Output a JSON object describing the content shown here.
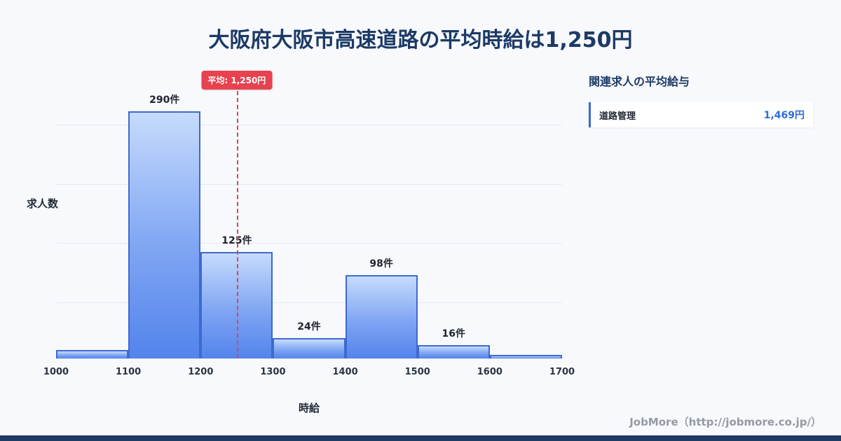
{
  "title": "大阪府大阪市高速道路の平均時給は1,250円",
  "chart_data": {
    "type": "bar",
    "title": "大阪府大阪市高速道路の平均時給は1,250円",
    "xlabel": "時給",
    "ylabel": "求人数",
    "x_ticks": [
      "1000",
      "1100",
      "1200",
      "1300",
      "1400",
      "1500",
      "1600",
      "1700"
    ],
    "ylim": [
      0,
      340
    ],
    "grid": "horizontal",
    "bins": [
      {
        "range": [
          1000,
          1100
        ],
        "value": 10,
        "label": ""
      },
      {
        "range": [
          1100,
          1200
        ],
        "value": 290,
        "label": "290件"
      },
      {
        "range": [
          1200,
          1300
        ],
        "value": 125,
        "label": "125件"
      },
      {
        "range": [
          1300,
          1400
        ],
        "value": 24,
        "label": "24件"
      },
      {
        "range": [
          1400,
          1500
        ],
        "value": 98,
        "label": "98件"
      },
      {
        "range": [
          1500,
          1600
        ],
        "value": 16,
        "label": "16件"
      },
      {
        "range": [
          1600,
          1700
        ],
        "value": 4,
        "label": ""
      }
    ],
    "average_line": {
      "x": 1250,
      "label": "平均: 1,250円",
      "color": "#e8414f"
    }
  },
  "side_panel": {
    "heading": "関連求人の平均給与",
    "items": [
      {
        "label": "道路管理",
        "value": "1,469円"
      }
    ]
  },
  "footer": {
    "credit": "JobMore（http://jobmore.co.jp/）"
  },
  "colors": {
    "background": "#f7f9fc",
    "title_navy": "#1c3a66",
    "bar_fill_top": "#c6dbfc",
    "bar_fill_bottom": "#5384ec",
    "bar_border": "#3d6ad0",
    "average_red": "#e8414f",
    "value_blue": "#2f6bd8",
    "credit_gray": "#949aa5",
    "bottom_strip_navy": "#1f3b61"
  }
}
